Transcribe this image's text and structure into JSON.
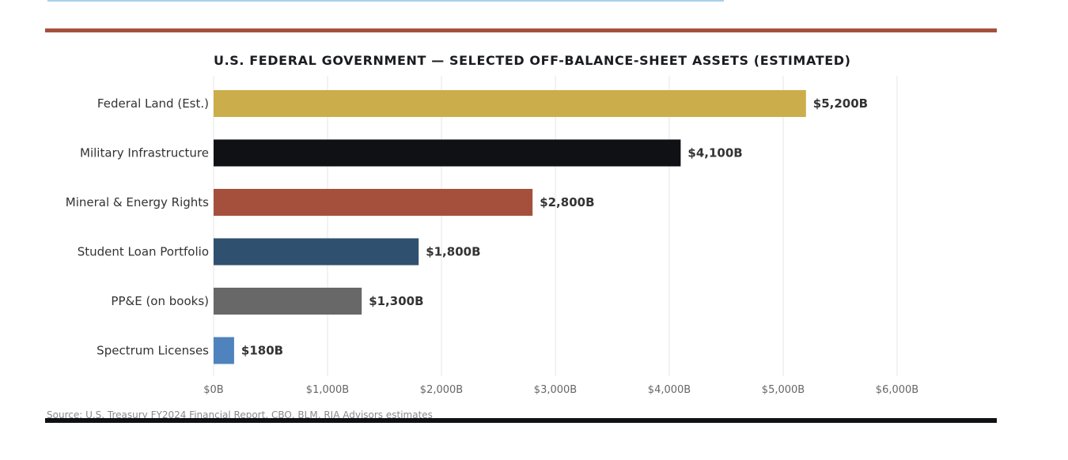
{
  "header": {
    "title": "U.S. FEDERAL GOVERNMENT — SELECTED OFF-BALANCE-SHEET ASSETS (ESTIMATED)"
  },
  "footer": {
    "source": "Source: U.S. Treasury FY2024 Financial Report, CBO, BLM, RIA Advisors estimates"
  },
  "chart_data": {
    "type": "bar",
    "orientation": "horizontal",
    "title": "U.S. FEDERAL GOVERNMENT — SELECTED OFF-BALANCE-SHEET ASSETS (ESTIMATED)",
    "categories": [
      "Federal Land (Est.)",
      "Military Infrastructure",
      "Mineral & Energy Rights",
      "Student Loan Portfolio",
      "PP&E (on books)",
      "Spectrum Licenses"
    ],
    "values": [
      5200,
      4100,
      2800,
      1800,
      1300,
      180
    ],
    "value_labels": [
      "$5,200B",
      "$4,100B",
      "$2,800B",
      "$1,800B",
      "$1,300B",
      "$180B"
    ],
    "colors": [
      "#cbae4b",
      "#0f1115",
      "#a5503c",
      "#30506f",
      "#686868",
      "#4e83bd"
    ],
    "xlim": [
      0,
      6000
    ],
    "xticks": [
      0,
      1000,
      2000,
      3000,
      4000,
      5000,
      6000
    ],
    "xtick_labels": [
      "$0B",
      "$1,000B",
      "$2,000B",
      "$3,000B",
      "$4,000B",
      "$5,000B",
      "$6,000B"
    ],
    "grid": "vertical",
    "legend": "none"
  }
}
